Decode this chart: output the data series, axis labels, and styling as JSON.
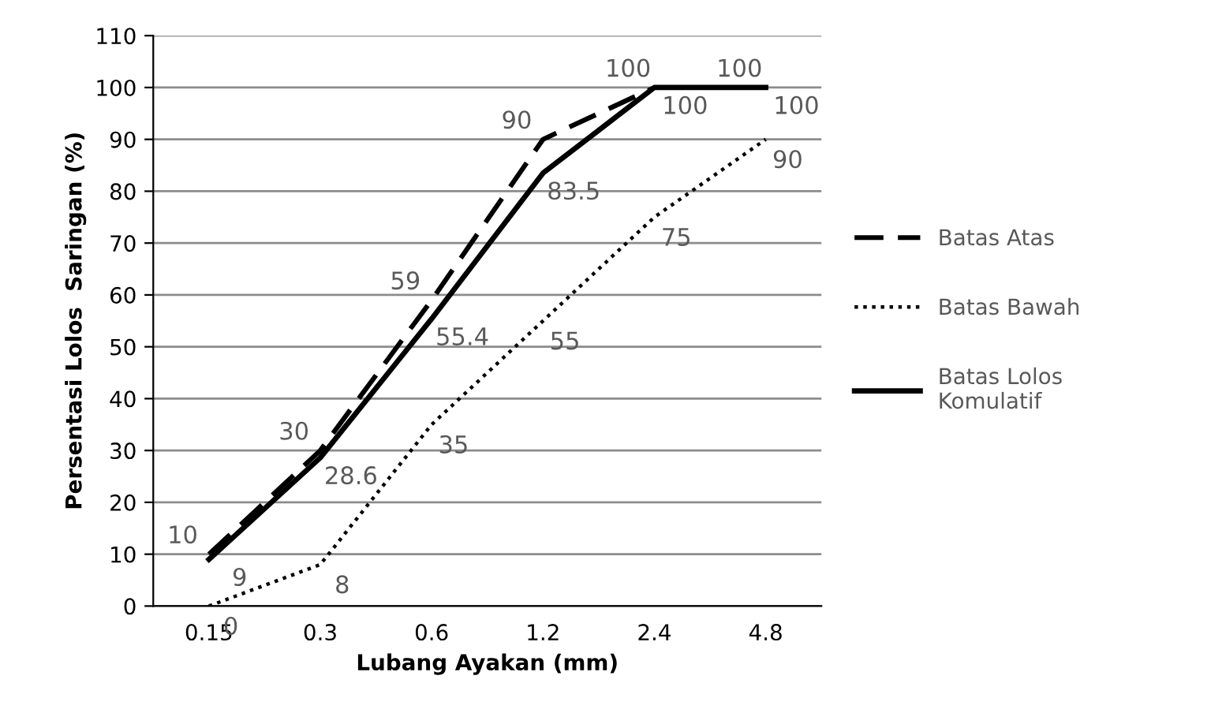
{
  "chart_data": {
    "type": "line",
    "xlabel": "Lubang Ayakan (mm)",
    "ylabel": "Persentasi Lolos  Saringan (%)",
    "categories": [
      "0.15",
      "0.3",
      "0.6",
      "1.2",
      "2.4",
      "4.8"
    ],
    "series": [
      {
        "name": "Batas Atas",
        "color": "#000000",
        "line_style": "dashed",
        "values": [
          10,
          30,
          59,
          90,
          100,
          100
        ]
      },
      {
        "name": "Batas Bawah",
        "color": "#000000",
        "line_style": "dotted",
        "values": [
          0,
          8,
          35,
          55,
          75,
          90
        ]
      },
      {
        "name": "Batas Lolos\nKomulatif",
        "color": "#000000",
        "line_style": "solid",
        "values": [
          9,
          28.6,
          55.4,
          83.5,
          100,
          100
        ]
      }
    ],
    "ylim": [
      0,
      110
    ],
    "yticks": [
      0,
      10,
      20,
      30,
      40,
      50,
      60,
      70,
      80,
      90,
      100,
      110
    ],
    "grid": "y",
    "legend": "right",
    "marker": "none",
    "data_labels": true
  }
}
